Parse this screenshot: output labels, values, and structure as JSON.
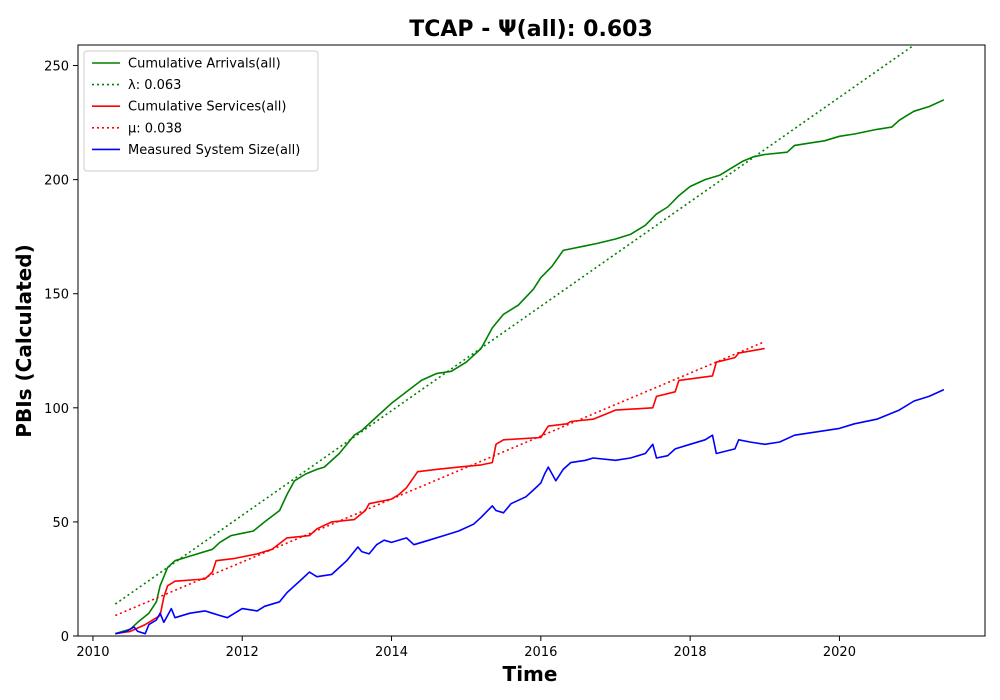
{
  "chart_data": {
    "type": "line",
    "title": "TCAP -  Ψ(all): 0.603",
    "xlabel": "Time",
    "ylabel": "PBIs (Calculated)",
    "xlim": [
      2009.8,
      2021.95
    ],
    "ylim": [
      0,
      259
    ],
    "xticks": [
      "2010",
      "2012",
      "2014",
      "2016",
      "2018",
      "2020"
    ],
    "yticks": [
      "0",
      "50",
      "100",
      "150",
      "200",
      "250"
    ],
    "grid": false,
    "legend_position": "upper-left",
    "series": [
      {
        "name": "Cumulative Arrivals(all)",
        "style": "solid",
        "color": "#008000",
        "points": [
          [
            2010.3,
            1
          ],
          [
            2010.5,
            3
          ],
          [
            2010.6,
            6
          ],
          [
            2010.75,
            10
          ],
          [
            2010.85,
            15
          ],
          [
            2010.9,
            22
          ],
          [
            2011.0,
            30
          ],
          [
            2011.1,
            33
          ],
          [
            2011.3,
            35
          ],
          [
            2011.6,
            38
          ],
          [
            2011.7,
            41
          ],
          [
            2011.85,
            44
          ],
          [
            2012.0,
            45
          ],
          [
            2012.15,
            46
          ],
          [
            2012.3,
            50
          ],
          [
            2012.5,
            55
          ],
          [
            2012.6,
            62
          ],
          [
            2012.7,
            68
          ],
          [
            2012.85,
            71
          ],
          [
            2013.0,
            73
          ],
          [
            2013.1,
            74
          ],
          [
            2013.3,
            80
          ],
          [
            2013.5,
            88
          ],
          [
            2013.6,
            90
          ],
          [
            2013.8,
            96
          ],
          [
            2014.0,
            102
          ],
          [
            2014.2,
            107
          ],
          [
            2014.4,
            112
          ],
          [
            2014.6,
            115
          ],
          [
            2014.8,
            116
          ],
          [
            2015.0,
            120
          ],
          [
            2015.2,
            126
          ],
          [
            2015.35,
            135
          ],
          [
            2015.5,
            141
          ],
          [
            2015.7,
            145
          ],
          [
            2015.9,
            152
          ],
          [
            2016.0,
            157
          ],
          [
            2016.15,
            162
          ],
          [
            2016.3,
            169
          ],
          [
            2016.6,
            171
          ],
          [
            2016.75,
            172
          ],
          [
            2017.0,
            174
          ],
          [
            2017.2,
            176
          ],
          [
            2017.4,
            180
          ],
          [
            2017.55,
            185
          ],
          [
            2017.7,
            188
          ],
          [
            2017.85,
            193
          ],
          [
            2018.0,
            197
          ],
          [
            2018.2,
            200
          ],
          [
            2018.4,
            202
          ],
          [
            2018.55,
            205
          ],
          [
            2018.7,
            208
          ],
          [
            2018.85,
            210
          ],
          [
            2019.0,
            211
          ],
          [
            2019.3,
            212
          ],
          [
            2019.4,
            215
          ],
          [
            2019.6,
            216
          ],
          [
            2019.8,
            217
          ],
          [
            2020.0,
            219
          ],
          [
            2020.2,
            220
          ],
          [
            2020.5,
            222
          ],
          [
            2020.7,
            223
          ],
          [
            2020.8,
            226
          ],
          [
            2020.9,
            228
          ],
          [
            2021.0,
            230
          ],
          [
            2021.2,
            232
          ],
          [
            2021.4,
            235
          ]
        ]
      },
      {
        "name": "λ: 0.063",
        "style": "dotted",
        "color": "#008000",
        "points": [
          [
            2010.3,
            14
          ],
          [
            2021.0,
            259
          ]
        ]
      },
      {
        "name": "Cumulative Services(all)",
        "style": "solid",
        "color": "#ff0000",
        "points": [
          [
            2010.3,
            1
          ],
          [
            2010.5,
            2
          ],
          [
            2010.7,
            5
          ],
          [
            2010.9,
            9
          ],
          [
            2010.95,
            17
          ],
          [
            2011.0,
            22
          ],
          [
            2011.1,
            24
          ],
          [
            2011.5,
            25
          ],
          [
            2011.6,
            28
          ],
          [
            2011.65,
            33
          ],
          [
            2011.9,
            34
          ],
          [
            2012.2,
            36
          ],
          [
            2012.4,
            38
          ],
          [
            2012.6,
            43
          ],
          [
            2012.9,
            44
          ],
          [
            2013.0,
            47
          ],
          [
            2013.2,
            50
          ],
          [
            2013.5,
            51
          ],
          [
            2013.65,
            55
          ],
          [
            2013.7,
            58
          ],
          [
            2014.0,
            60
          ],
          [
            2014.1,
            62
          ],
          [
            2014.2,
            65
          ],
          [
            2014.35,
            72
          ],
          [
            2014.6,
            73
          ],
          [
            2014.9,
            74
          ],
          [
            2015.2,
            75
          ],
          [
            2015.35,
            76
          ],
          [
            2015.4,
            84
          ],
          [
            2015.5,
            86
          ],
          [
            2016.0,
            87
          ],
          [
            2016.1,
            92
          ],
          [
            2016.35,
            93
          ],
          [
            2016.4,
            94
          ],
          [
            2016.7,
            95
          ],
          [
            2017.0,
            99
          ],
          [
            2017.5,
            100
          ],
          [
            2017.55,
            105
          ],
          [
            2017.8,
            107
          ],
          [
            2017.85,
            112
          ],
          [
            2018.3,
            114
          ],
          [
            2018.35,
            120
          ],
          [
            2018.6,
            122
          ],
          [
            2018.65,
            124
          ],
          [
            2019.0,
            126
          ]
        ]
      },
      {
        "name": "μ: 0.038",
        "style": "dotted",
        "color": "#ff0000",
        "points": [
          [
            2010.3,
            9
          ],
          [
            2019.0,
            129
          ]
        ]
      },
      {
        "name": "Measured System Size(all)",
        "style": "solid",
        "color": "#0000ff",
        "points": [
          [
            2010.3,
            1
          ],
          [
            2010.45,
            2
          ],
          [
            2010.55,
            4
          ],
          [
            2010.6,
            2
          ],
          [
            2010.7,
            1
          ],
          [
            2010.75,
            5
          ],
          [
            2010.85,
            7
          ],
          [
            2010.9,
            10
          ],
          [
            2010.95,
            6
          ],
          [
            2011.0,
            9
          ],
          [
            2011.05,
            12
          ],
          [
            2011.1,
            8
          ],
          [
            2011.3,
            10
          ],
          [
            2011.5,
            11
          ],
          [
            2011.6,
            10
          ],
          [
            2011.7,
            9
          ],
          [
            2011.8,
            8
          ],
          [
            2012.0,
            12
          ],
          [
            2012.2,
            11
          ],
          [
            2012.3,
            13
          ],
          [
            2012.5,
            15
          ],
          [
            2012.6,
            19
          ],
          [
            2012.7,
            22
          ],
          [
            2012.8,
            25
          ],
          [
            2012.9,
            28
          ],
          [
            2013.0,
            26
          ],
          [
            2013.2,
            27
          ],
          [
            2013.3,
            30
          ],
          [
            2013.4,
            33
          ],
          [
            2013.55,
            39
          ],
          [
            2013.6,
            37
          ],
          [
            2013.7,
            36
          ],
          [
            2013.8,
            40
          ],
          [
            2013.9,
            42
          ],
          [
            2014.0,
            41
          ],
          [
            2014.2,
            43
          ],
          [
            2014.3,
            40
          ],
          [
            2014.5,
            42
          ],
          [
            2014.7,
            44
          ],
          [
            2014.9,
            46
          ],
          [
            2015.1,
            49
          ],
          [
            2015.2,
            52
          ],
          [
            2015.35,
            57
          ],
          [
            2015.4,
            55
          ],
          [
            2015.5,
            54
          ],
          [
            2015.6,
            58
          ],
          [
            2015.8,
            61
          ],
          [
            2015.9,
            64
          ],
          [
            2016.0,
            67
          ],
          [
            2016.05,
            71
          ],
          [
            2016.1,
            74
          ],
          [
            2016.2,
            68
          ],
          [
            2016.3,
            73
          ],
          [
            2016.4,
            76
          ],
          [
            2016.6,
            77
          ],
          [
            2016.7,
            78
          ],
          [
            2017.0,
            77
          ],
          [
            2017.2,
            78
          ],
          [
            2017.4,
            80
          ],
          [
            2017.5,
            84
          ],
          [
            2017.55,
            78
          ],
          [
            2017.7,
            79
          ],
          [
            2017.8,
            82
          ],
          [
            2018.0,
            84
          ],
          [
            2018.2,
            86
          ],
          [
            2018.3,
            88
          ],
          [
            2018.35,
            80
          ],
          [
            2018.6,
            82
          ],
          [
            2018.65,
            86
          ],
          [
            2018.8,
            85
          ],
          [
            2019.0,
            84
          ],
          [
            2019.2,
            85
          ],
          [
            2019.4,
            88
          ],
          [
            2019.6,
            89
          ],
          [
            2020.0,
            91
          ],
          [
            2020.2,
            93
          ],
          [
            2020.5,
            95
          ],
          [
            2020.8,
            99
          ],
          [
            2021.0,
            103
          ],
          [
            2021.2,
            105
          ],
          [
            2021.4,
            108
          ]
        ]
      }
    ]
  }
}
